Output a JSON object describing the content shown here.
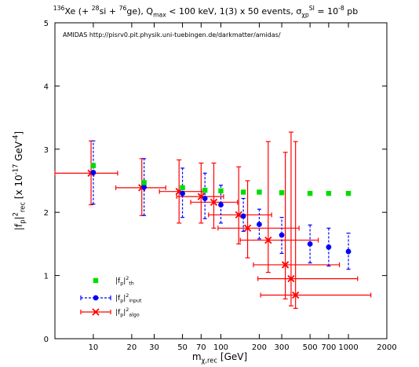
{
  "chart_data": {
    "type": "scatter",
    "title_parts": [
      {
        "text": "136",
        "sup": true
      },
      {
        "text": "Xe (+ "
      },
      {
        "text": "28",
        "sup": true
      },
      {
        "text": "si + "
      },
      {
        "text": "76",
        "sup": true
      },
      {
        "text": "ge), Q"
      },
      {
        "text": "max",
        "sub": true
      },
      {
        "text": " < 100 keV, 1(3) x 50 events, σ"
      },
      {
        "text": "χp",
        "sub": true
      },
      {
        "text": "SI",
        "sup": true
      },
      {
        "text": " = 10"
      },
      {
        "text": "-8",
        "sup": true
      },
      {
        "text": " pb"
      }
    ],
    "annotation": "AMIDAS   http://pisrv0.pit.physik.uni-tuebingen.de/darkmatter/amidas/",
    "xlabel_parts": [
      {
        "text": "m"
      },
      {
        "text": "χ,rec",
        "sub": true
      },
      {
        "text": " [GeV]"
      }
    ],
    "ylabel_parts": [
      {
        "text": "|f"
      },
      {
        "text": "p",
        "sub": true
      },
      {
        "text": "|"
      },
      {
        "text": "2",
        "sup": true
      },
      {
        "text": "rec",
        "sub": true
      },
      {
        "text": "  [x 10"
      },
      {
        "text": "-17",
        "sup": true
      },
      {
        "text": " GeV"
      },
      {
        "text": "-4",
        "sup": true
      },
      {
        "text": "]"
      }
    ],
    "x_scale": "log",
    "xlim": [
      5,
      2000
    ],
    "ylim": [
      0,
      5
    ],
    "x_ticks": [
      10,
      20,
      30,
      50,
      70,
      100,
      200,
      300,
      500,
      700,
      1000,
      2000
    ],
    "x_tick_labels": [
      "10",
      "20",
      "30",
      "50",
      "70",
      "100",
      "200",
      "300",
      "500",
      "700",
      "1000",
      "2000"
    ],
    "y_ticks": [
      0,
      1,
      2,
      3,
      4,
      5
    ],
    "y_tick_labels": [
      "0",
      "1",
      "2",
      "3",
      "4",
      "5"
    ],
    "legend_position": "bottom-left",
    "series": [
      {
        "key": "th",
        "label_parts": [
          {
            "text": "|f"
          },
          {
            "text": "p",
            "sub": true
          },
          {
            "text": "|"
          },
          {
            "text": "2",
            "sup": true
          },
          {
            "text": "th",
            "sub": true
          }
        ],
        "color": "#00dd00",
        "marker": "square",
        "points": [
          {
            "x": 10,
            "y": 2.74
          },
          {
            "x": 25,
            "y": 2.47
          },
          {
            "x": 50,
            "y": 2.39
          },
          {
            "x": 75,
            "y": 2.35
          },
          {
            "x": 100,
            "y": 2.34
          },
          {
            "x": 150,
            "y": 2.32
          },
          {
            "x": 200,
            "y": 2.32
          },
          {
            "x": 300,
            "y": 2.31
          },
          {
            "x": 500,
            "y": 2.3
          },
          {
            "x": 700,
            "y": 2.3
          },
          {
            "x": 1000,
            "y": 2.3
          }
        ]
      },
      {
        "key": "input",
        "label_parts": [
          {
            "text": "|f"
          },
          {
            "text": "p",
            "sub": true
          },
          {
            "text": "|"
          },
          {
            "text": "2",
            "sup": true
          },
          {
            "text": "input",
            "sub": true
          }
        ],
        "color": "#0000ff",
        "marker": "circle",
        "points": [
          {
            "x": 10,
            "y": 2.63,
            "ylo": 2.13,
            "yhi": 3.13
          },
          {
            "x": 25,
            "y": 2.4,
            "ylo": 1.95,
            "yhi": 2.85
          },
          {
            "x": 50,
            "y": 2.3,
            "ylo": 1.92,
            "yhi": 2.7
          },
          {
            "x": 75,
            "y": 2.22,
            "ylo": 1.9,
            "yhi": 2.62
          },
          {
            "x": 100,
            "y": 2.12,
            "ylo": 1.83,
            "yhi": 2.43
          },
          {
            "x": 150,
            "y": 1.94,
            "ylo": 1.7,
            "yhi": 2.22
          },
          {
            "x": 200,
            "y": 1.81,
            "ylo": 1.58,
            "yhi": 2.05
          },
          {
            "x": 300,
            "y": 1.64,
            "ylo": 1.35,
            "yhi": 1.92
          },
          {
            "x": 500,
            "y": 1.5,
            "ylo": 1.2,
            "yhi": 1.8
          },
          {
            "x": 700,
            "y": 1.45,
            "ylo": 1.15,
            "yhi": 1.75
          },
          {
            "x": 1000,
            "y": 1.38,
            "ylo": 1.1,
            "yhi": 1.67
          }
        ]
      },
      {
        "key": "algo",
        "label_parts": [
          {
            "text": "|f"
          },
          {
            "text": "p",
            "sub": true
          },
          {
            "text": "|"
          },
          {
            "text": "2",
            "sup": true
          },
          {
            "text": "algo",
            "sub": true
          }
        ],
        "color": "#ff0000",
        "marker": "x",
        "points": [
          {
            "x": 9.6,
            "y": 2.62,
            "xlo": 5.0,
            "xhi": 15.5,
            "ylo": 2.12,
            "yhi": 3.13
          },
          {
            "x": 24,
            "y": 2.39,
            "xlo": 15.0,
            "xhi": 37,
            "ylo": 1.95,
            "yhi": 2.85
          },
          {
            "x": 47,
            "y": 2.33,
            "xlo": 33,
            "xhi": 72,
            "ylo": 1.83,
            "yhi": 2.83
          },
          {
            "x": 70,
            "y": 2.25,
            "xlo": 45,
            "xhi": 105,
            "ylo": 1.83,
            "yhi": 2.78
          },
          {
            "x": 88,
            "y": 2.16,
            "xlo": 58,
            "xhi": 135,
            "ylo": 1.75,
            "yhi": 2.78
          },
          {
            "x": 138,
            "y": 1.96,
            "xlo": 80,
            "xhi": 250,
            "ylo": 1.5,
            "yhi": 2.72
          },
          {
            "x": 162,
            "y": 1.75,
            "xlo": 95,
            "xhi": 410,
            "ylo": 1.28,
            "yhi": 2.5
          },
          {
            "x": 235,
            "y": 1.56,
            "xlo": 142,
            "xhi": 580,
            "ylo": 1.05,
            "yhi": 3.12
          },
          {
            "x": 320,
            "y": 1.17,
            "xlo": 180,
            "xhi": 850,
            "ylo": 0.63,
            "yhi": 2.95
          },
          {
            "x": 355,
            "y": 0.95,
            "xlo": 195,
            "xhi": 1180,
            "ylo": 0.52,
            "yhi": 3.27
          },
          {
            "x": 385,
            "y": 0.69,
            "xlo": 205,
            "xhi": 1500,
            "ylo": 0.48,
            "yhi": 3.12
          }
        ]
      }
    ]
  }
}
